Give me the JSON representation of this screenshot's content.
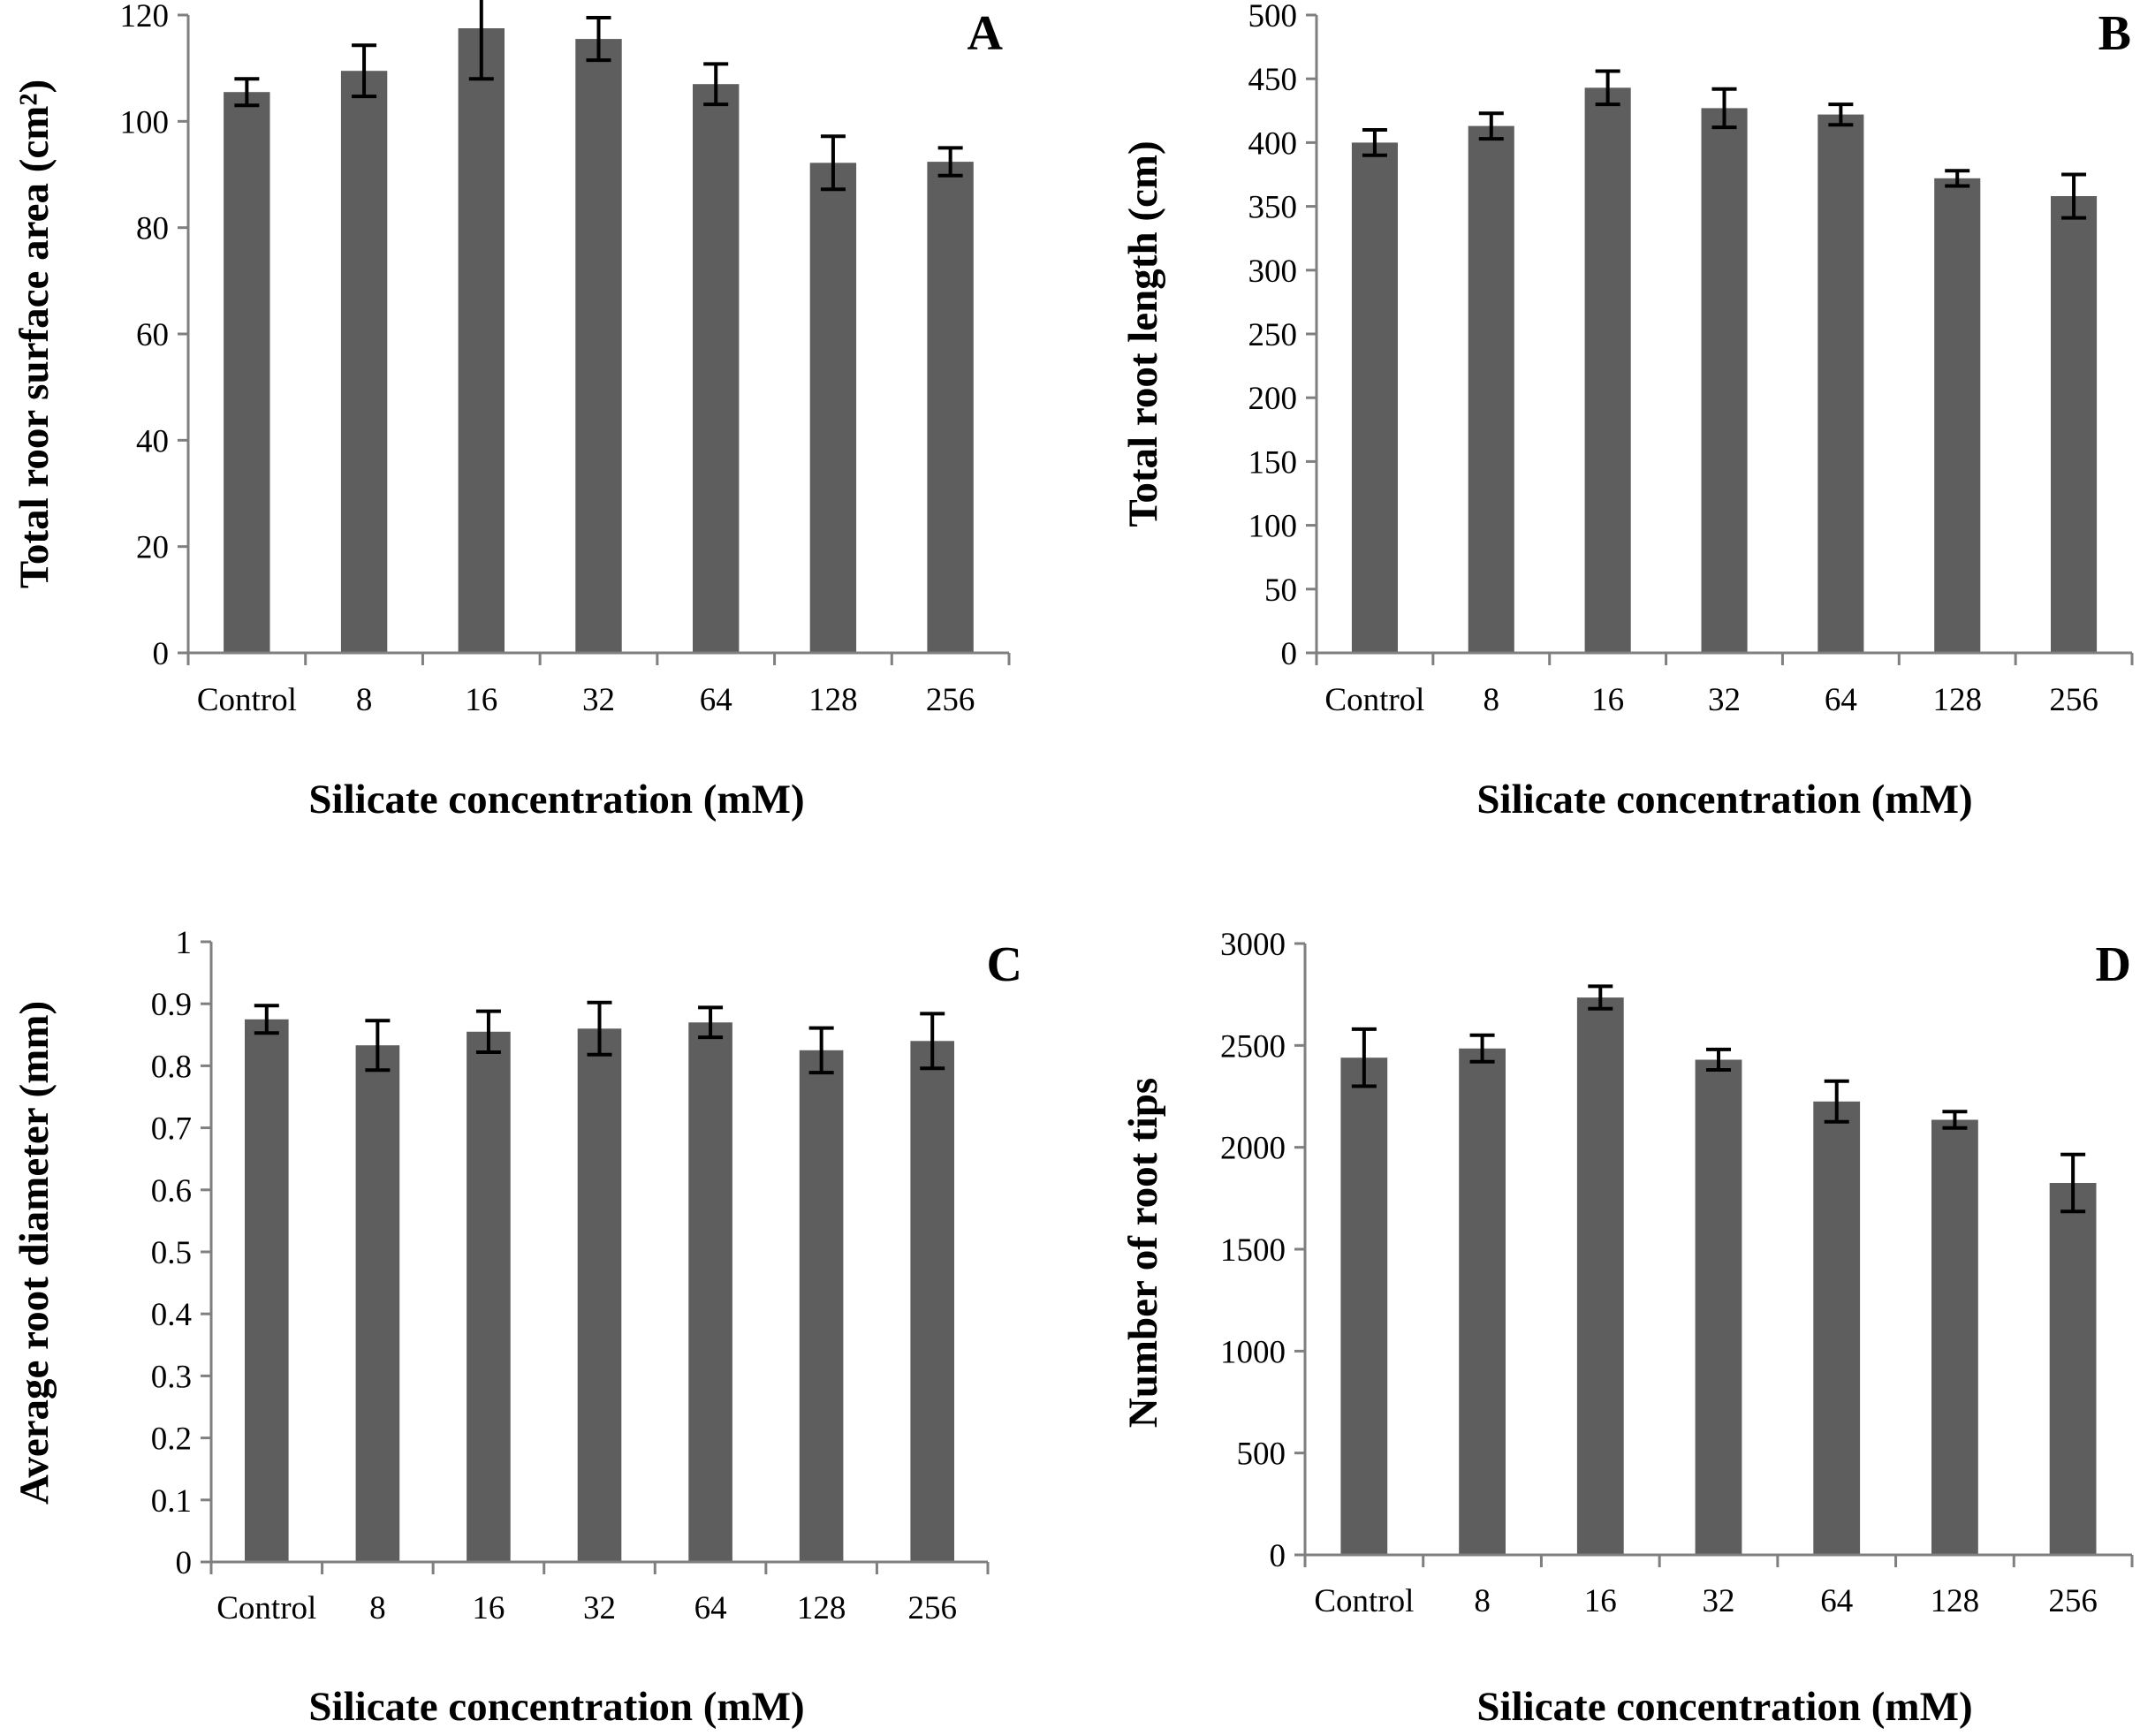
{
  "bar_color": "#5e5e5e",
  "chart_data": [
    {
      "panel": "A",
      "type": "bar",
      "categories": [
        "Control",
        "8",
        "16",
        "32",
        "64",
        "128",
        "256"
      ],
      "values": [
        105.5,
        109.5,
        117.5,
        115.5,
        107,
        92.2,
        92.4
      ],
      "errors": [
        2.5,
        4.8,
        9.5,
        4.0,
        3.8,
        5.0,
        2.6
      ],
      "title": "",
      "xlabel": "Silicate concentration (mM)",
      "ylabel": "Total roor surface area (cm²)",
      "ylim": [
        0,
        120
      ],
      "yticks": [
        0,
        20,
        40,
        60,
        80,
        100,
        120
      ],
      "ytick_labels": [
        "0",
        "20",
        "40",
        "60",
        "80",
        "100",
        "120"
      ],
      "grid": false
    },
    {
      "panel": "B",
      "type": "bar",
      "categories": [
        "Control",
        "8",
        "16",
        "32",
        "64",
        "128",
        "256"
      ],
      "values": [
        400,
        413,
        443,
        427,
        422,
        372,
        358
      ],
      "errors": [
        10,
        10,
        13,
        15,
        8,
        6,
        17
      ],
      "title": "",
      "xlabel": "Silicate concentration (mM)",
      "ylabel": "Total root length (cm)",
      "ylim": [
        0,
        500
      ],
      "yticks": [
        0,
        50,
        100,
        150,
        200,
        250,
        300,
        350,
        400,
        450,
        500
      ],
      "ytick_labels": [
        "0",
        "50",
        "100",
        "150",
        "200",
        "250",
        "300",
        "350",
        "400",
        "450",
        "500"
      ],
      "grid": false
    },
    {
      "panel": "C",
      "type": "bar",
      "categories": [
        "Control",
        "8",
        "16",
        "32",
        "64",
        "128",
        "256"
      ],
      "values": [
        0.875,
        0.833,
        0.855,
        0.86,
        0.87,
        0.825,
        0.84
      ],
      "errors": [
        0.022,
        0.04,
        0.033,
        0.042,
        0.024,
        0.036,
        0.044
      ],
      "title": "",
      "xlabel": "Silicate concentration (mM)",
      "ylabel": "Average root diameter (mm)",
      "ylim": [
        0,
        1
      ],
      "yticks": [
        0,
        0.1,
        0.2,
        0.3,
        0.4,
        0.5,
        0.6,
        0.7,
        0.8,
        0.9,
        1
      ],
      "ytick_labels": [
        "0",
        "0.1",
        "0.2",
        "0.3",
        "0.4",
        "0.5",
        "0.6",
        "0.7",
        "0.8",
        "0.9",
        "1"
      ],
      "grid": false
    },
    {
      "panel": "D",
      "type": "bar",
      "categories": [
        "Control",
        "8",
        "16",
        "32",
        "64",
        "128",
        "256"
      ],
      "values": [
        2440,
        2485,
        2735,
        2430,
        2225,
        2135,
        1825
      ],
      "errors": [
        140,
        65,
        55,
        50,
        100,
        40,
        140
      ],
      "title": "",
      "xlabel": "Silicate concentration (mM)",
      "ylabel": "Number of root tips",
      "ylim": [
        0,
        3000
      ],
      "yticks": [
        0,
        500,
        1000,
        1500,
        2000,
        2500,
        3000
      ],
      "ytick_labels": [
        "0",
        "500",
        "1000",
        "1500",
        "2000",
        "2500",
        "3000"
      ],
      "grid": false
    }
  ]
}
